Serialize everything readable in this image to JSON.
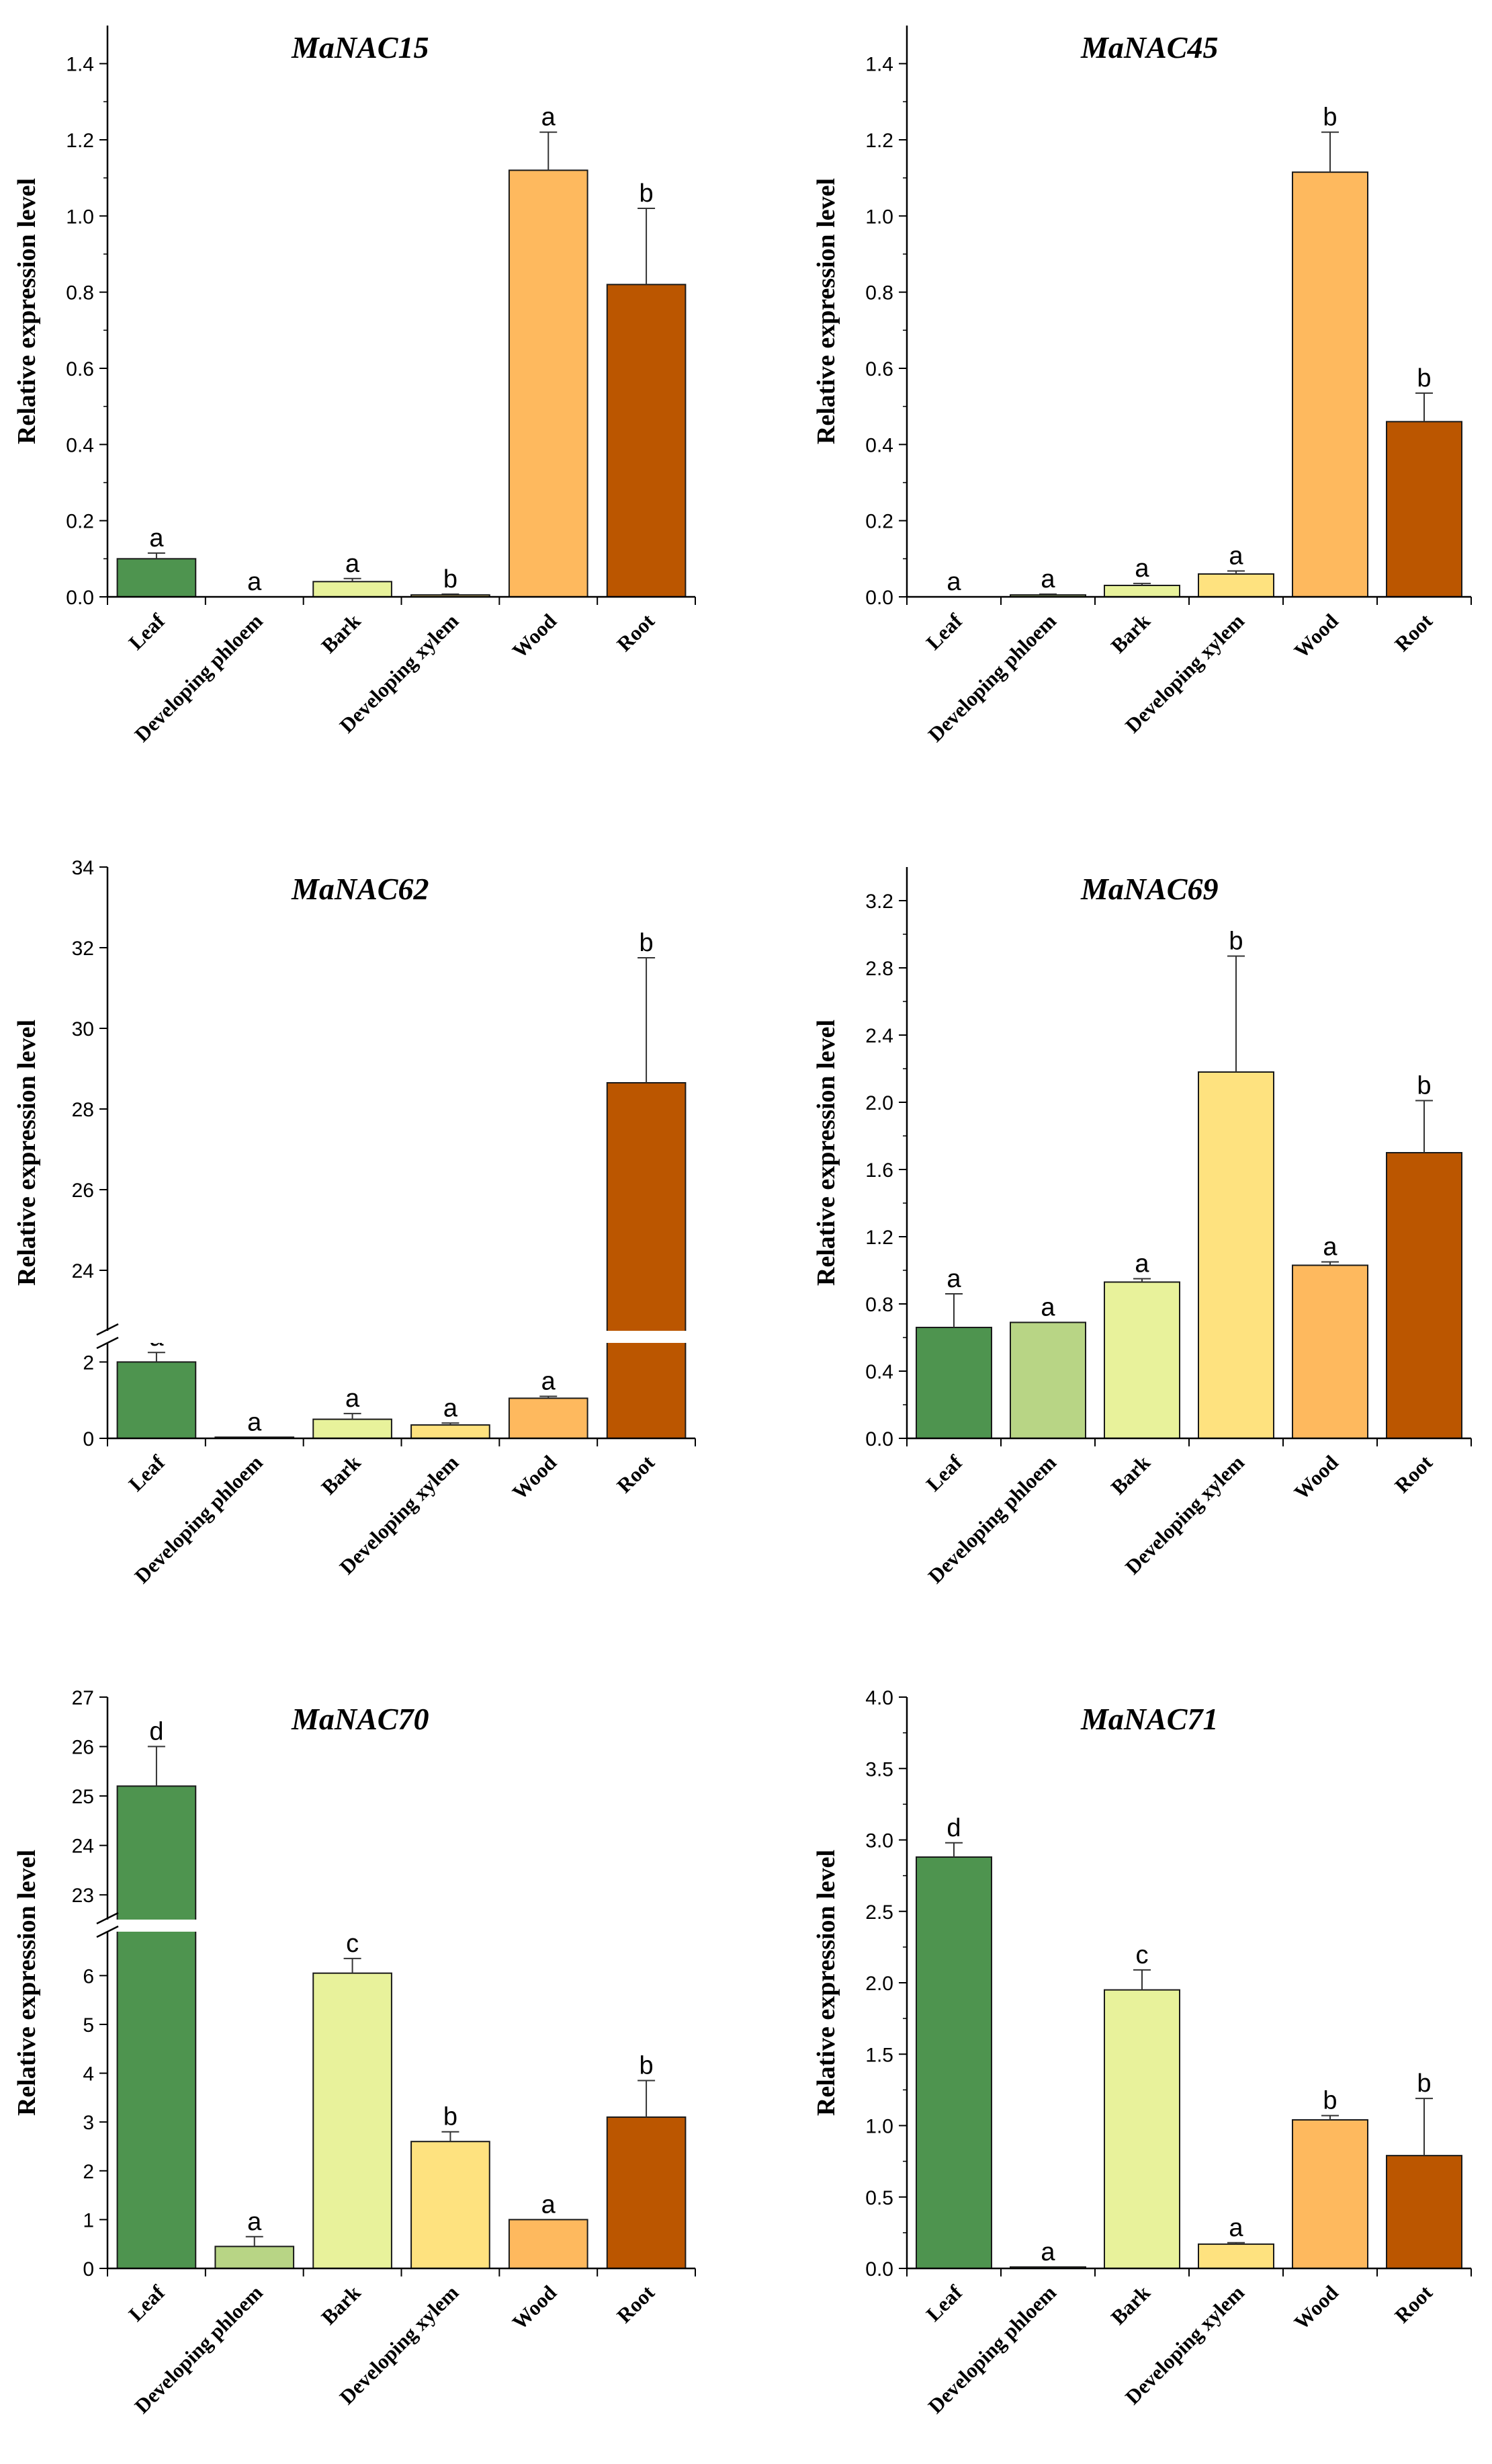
{
  "colors": {
    "Leaf": "#4e944f",
    "Developing phloem": "#b8d585",
    "Bark": "#e8f29b",
    "Developing xylem": "#fee27f",
    "Wood": "#feb95e",
    "Root": "#bb5600"
  },
  "chart_data": [
    {
      "type": "bar",
      "title": "MaNAC15",
      "ylabel": "Relative expression level",
      "categories": [
        "Leaf",
        "Developing phloem",
        "Bark",
        "Developing xylem",
        "Wood",
        "Root"
      ],
      "values": [
        0.1,
        0.0,
        0.04,
        0.005,
        1.12,
        0.82
      ],
      "errors": [
        0.015,
        0.0,
        0.008,
        0.002,
        0.1,
        0.2
      ],
      "letters": [
        "a",
        "a",
        "a",
        "b",
        "a",
        "b"
      ],
      "ylim": [
        0,
        1.5
      ],
      "yticks": [
        "0.0",
        "0.2",
        "0.4",
        "0.6",
        "0.8",
        "1.0",
        "1.2",
        "1.4"
      ]
    },
    {
      "type": "bar",
      "title": "MaNAC45",
      "ylabel": "Relative expression level",
      "categories": [
        "Leaf",
        "Developing phloem",
        "Bark",
        "Developing xylem",
        "Wood",
        "Root"
      ],
      "values": [
        0.0,
        0.005,
        0.03,
        0.06,
        1.115,
        0.46
      ],
      "errors": [
        0.0,
        0.002,
        0.005,
        0.008,
        0.105,
        0.075
      ],
      "letters": [
        "a",
        "a",
        "a",
        "a",
        "b",
        "b"
      ],
      "ylim": [
        0,
        1.5
      ],
      "yticks": [
        "0.0",
        "0.2",
        "0.4",
        "0.6",
        "0.8",
        "1.0",
        "1.2",
        "1.4"
      ]
    },
    {
      "type": "bar",
      "title": "MaNAC62",
      "ylabel": "Relative expression level",
      "categories": [
        "Leaf",
        "Developing phloem",
        "Bark",
        "Developing xylem",
        "Wood",
        "Root"
      ],
      "values": [
        2.0,
        0.03,
        0.5,
        0.35,
        1.05,
        28.65
      ],
      "errors": [
        0.25,
        0.0,
        0.15,
        0.05,
        0.05,
        3.1
      ],
      "letters": [
        "a",
        "a",
        "a",
        "a",
        "a",
        "b"
      ],
      "axis_break": {
        "lower": [
          0,
          2.5
        ],
        "upper": [
          22.5,
          34
        ]
      },
      "yticks_lower": [
        "0",
        "2"
      ],
      "yticks_upper": [
        "24",
        "26",
        "28",
        "30",
        "32",
        "34"
      ]
    },
    {
      "type": "bar",
      "title": "MaNAC69",
      "ylabel": "Relative expression level",
      "categories": [
        "Leaf",
        "Developing phloem",
        "Bark",
        "Developing xylem",
        "Wood",
        "Root"
      ],
      "values": [
        0.66,
        0.69,
        0.93,
        2.18,
        1.03,
        1.7
      ],
      "errors": [
        0.2,
        0.0,
        0.02,
        0.69,
        0.02,
        0.31
      ],
      "letters": [
        "a",
        "a",
        "a",
        "b",
        "a",
        "b"
      ],
      "ylim": [
        0,
        3.4
      ],
      "yticks": [
        "0.0",
        "0.4",
        "0.8",
        "1.2",
        "1.6",
        "2.0",
        "2.4",
        "2.8",
        "3.2"
      ]
    },
    {
      "type": "bar",
      "title": "MaNAC70",
      "ylabel": "Relative expression level",
      "categories": [
        "Leaf",
        "Developing phloem",
        "Bark",
        "Developing xylem",
        "Wood",
        "Root"
      ],
      "values": [
        25.2,
        0.45,
        6.05,
        2.6,
        1.0,
        3.1
      ],
      "errors": [
        0.8,
        0.2,
        0.3,
        0.2,
        0.0,
        0.75
      ],
      "letters": [
        "d",
        "a",
        "c",
        "b",
        "a",
        "b"
      ],
      "axis_break": {
        "lower": [
          0,
          6.9
        ],
        "upper": [
          22.5,
          27
        ]
      },
      "yticks_lower": [
        "0",
        "1",
        "2",
        "3",
        "4",
        "5",
        "6"
      ],
      "yticks_upper": [
        "23",
        "24",
        "25",
        "26",
        "27"
      ]
    },
    {
      "type": "bar",
      "title": "MaNAC71",
      "ylabel": "Relative expression level",
      "categories": [
        "Leaf",
        "Developing phloem",
        "Bark",
        "Developing xylem",
        "Wood",
        "Root"
      ],
      "values": [
        2.88,
        0.01,
        1.95,
        0.17,
        1.04,
        0.79
      ],
      "errors": [
        0.1,
        0.0,
        0.14,
        0.01,
        0.03,
        0.4
      ],
      "letters": [
        "d",
        "a",
        "c",
        "a",
        "b",
        "b"
      ],
      "ylim": [
        0,
        4.0
      ],
      "yticks": [
        "0.0",
        "0.5",
        "1.0",
        "1.5",
        "2.0",
        "2.5",
        "3.0",
        "3.5",
        "4.0"
      ]
    }
  ]
}
